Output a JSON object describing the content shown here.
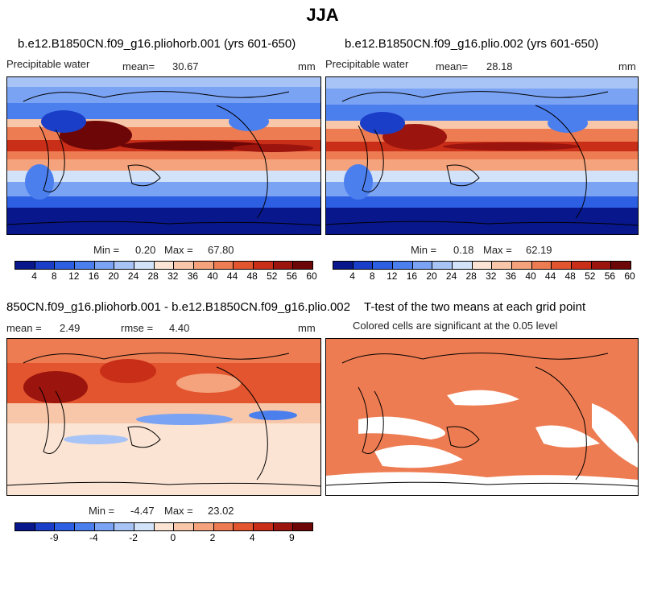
{
  "title": "JJA",
  "panels": [
    {
      "id": "p1",
      "title": "b.e12.B1850CN.f09_g16.pliohorb.001 (yrs 601-650)",
      "field": "Precipitable water",
      "mean_label": "mean=",
      "mean": "30.67",
      "units": "mm",
      "min_label": "Min =",
      "min": "0.20",
      "max_label": "Max =",
      "max": "67.80"
    },
    {
      "id": "p2",
      "title": "b.e12.B1850CN.f09_g16.plio.002 (yrs 601-650)",
      "field": "Precipitable water",
      "mean_label": "mean=",
      "mean": "28.18",
      "units": "mm",
      "min_label": "Min =",
      "min": "0.18",
      "max_label": "Max =",
      "max": "62.19"
    },
    {
      "id": "p3",
      "title": "850CN.f09_g16.pliohorb.001 - b.e12.B1850CN.f09_g16.plio.002",
      "mean_label": "mean =",
      "mean": "2.49",
      "rmse_label": "rmse =",
      "rmse": "4.40",
      "units": "mm",
      "min_label": "Min =",
      "min": "-4.47",
      "max_label": "Max =",
      "max": "23.02"
    },
    {
      "id": "p4",
      "title": "T-test of the two means at each grid point",
      "subtitle": "Colored cells are significant at the 0.05 level"
    }
  ],
  "colorbar_abs": {
    "colors": [
      "#08178c",
      "#1a3ec8",
      "#2d5fe3",
      "#4c7fee",
      "#7aa3f3",
      "#a8c4f6",
      "#d2e2f8",
      "#fbe4d4",
      "#f8c6a8",
      "#f4a37c",
      "#ee7c52",
      "#e3552e",
      "#c82e18",
      "#9b140d",
      "#6d0606"
    ],
    "labels": [
      "4",
      "8",
      "12",
      "16",
      "20",
      "24",
      "28",
      "32",
      "36",
      "40",
      "44",
      "48",
      "52",
      "56",
      "60"
    ]
  },
  "colorbar_diff": {
    "colors": [
      "#08178c",
      "#1a3ec8",
      "#2d5fe3",
      "#4c7fee",
      "#7aa3f3",
      "#a8c4f6",
      "#d2e2f8",
      "#fbe4d4",
      "#f8c6a8",
      "#f4a37c",
      "#ee7c52",
      "#e3552e",
      "#c82e18",
      "#9b140d",
      "#6d0606"
    ],
    "labels": [
      "-9",
      "-4",
      "-2",
      "0",
      "2",
      "4",
      "9"
    ]
  },
  "map_colors": {
    "sig": "#ee7c52"
  }
}
